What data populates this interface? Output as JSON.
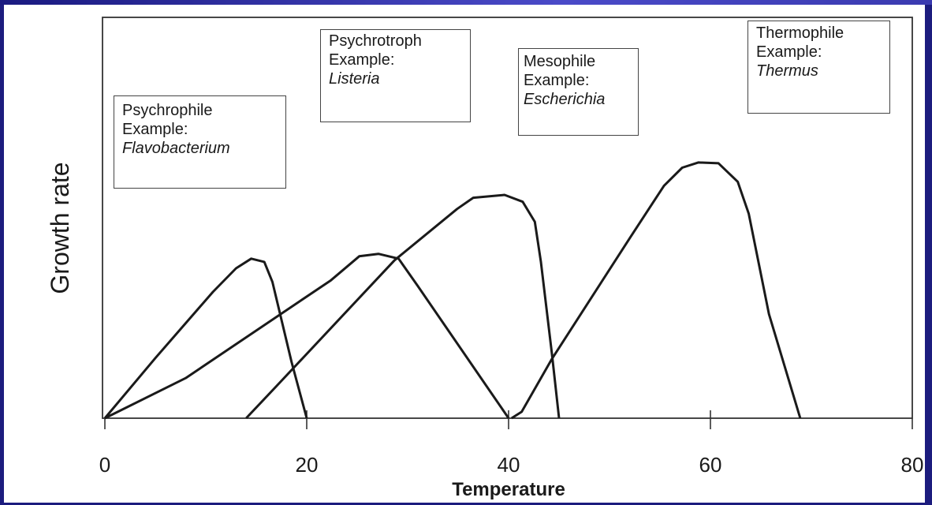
{
  "chart_data": {
    "type": "line",
    "title": "",
    "xlabel": "Temperature",
    "ylabel": "Growth rate",
    "xlim": [
      0,
      80
    ],
    "ylim": [
      0,
      1
    ],
    "xticks": [
      "0",
      "20",
      "40",
      "60",
      "80"
    ],
    "grid": false,
    "line_color": "#1a1a1a",
    "series": [
      {
        "name": "Psychrophile",
        "example_label": "Example:",
        "example": "Flavobacterium",
        "points": [
          [
            0,
            0
          ],
          [
            5,
            0.15
          ],
          [
            10.7,
            0.315
          ],
          [
            13,
            0.374
          ],
          [
            14.5,
            0.398
          ],
          [
            15.8,
            0.39
          ],
          [
            16.6,
            0.34
          ],
          [
            18.5,
            0.14
          ],
          [
            20,
            0
          ]
        ]
      },
      {
        "name": "Psychrotroph",
        "example_label": "Example:",
        "example": "Listeria",
        "points": [
          [
            0,
            0
          ],
          [
            8,
            0.1
          ],
          [
            22.4,
            0.344
          ],
          [
            25.2,
            0.404
          ],
          [
            27.1,
            0.41
          ],
          [
            29.1,
            0.398
          ],
          [
            31,
            0.33
          ],
          [
            40,
            0
          ]
        ]
      },
      {
        "name": "Mesophile",
        "example_label": "Example:",
        "example": "Escherichia",
        "points": [
          [
            14,
            0
          ],
          [
            17,
            0.08
          ],
          [
            28.7,
            0.394
          ],
          [
            34.9,
            0.522
          ],
          [
            36.5,
            0.55
          ],
          [
            39.6,
            0.557
          ],
          [
            41.4,
            0.54
          ],
          [
            42.6,
            0.49
          ],
          [
            43.2,
            0.39
          ],
          [
            44.3,
            0.16
          ],
          [
            45,
            0
          ]
        ]
      },
      {
        "name": "Thermophile",
        "example_label": "Example:",
        "example": "Thermus",
        "points": [
          [
            40.3,
            0
          ],
          [
            41.3,
            0.016
          ],
          [
            44.3,
            0.148
          ],
          [
            52.1,
            0.453
          ],
          [
            55.4,
            0.58
          ],
          [
            57.2,
            0.625
          ],
          [
            58.8,
            0.638
          ],
          [
            60.8,
            0.636
          ],
          [
            62.7,
            0.59
          ],
          [
            63.8,
            0.51
          ],
          [
            65.8,
            0.26
          ],
          [
            68.9,
            0
          ]
        ]
      }
    ]
  }
}
